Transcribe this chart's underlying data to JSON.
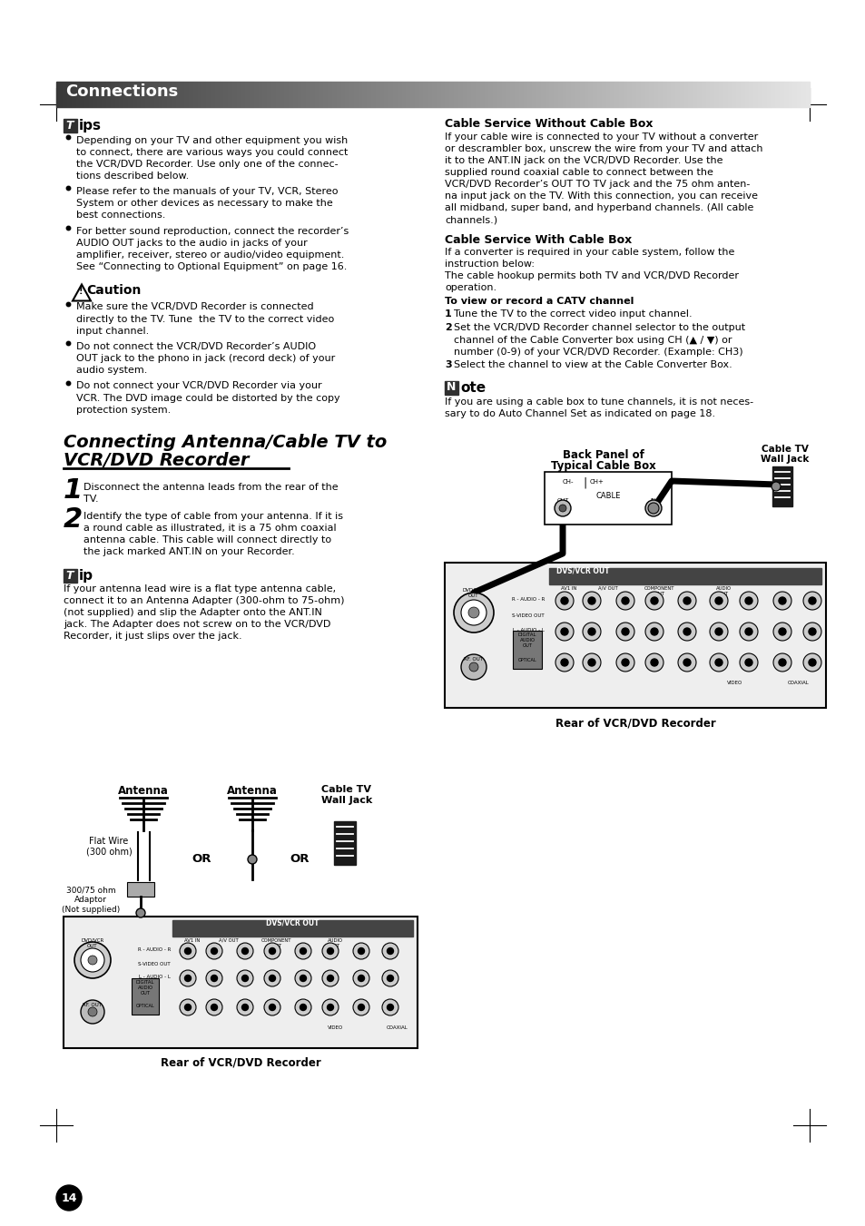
{
  "page_bg": "#ffffff",
  "header_text": "Connections",
  "page_number": "14",
  "tips_bullets": [
    "Depending on your TV and other equipment you wish\nto connect, there are various ways you could connect\nthe VCR/DVD Recorder. Use only one of the connec-\ntions described below.",
    "Please refer to the manuals of your TV, VCR, Stereo\nSystem or other devices as necessary to make the\nbest connections.",
    "For better sound reproduction, connect the recorder’s\nAUDIO OUT jacks to the audio in jacks of your\namplifier, receiver, stereo or audio/video equipment.\nSee “Connecting to Optional Equipment” on page 16."
  ],
  "caution_title": "Caution",
  "caution_bullets": [
    "Make sure the VCR/DVD Recorder is connected\ndirectly to the TV. Tune  the TV to the correct video\ninput channel.",
    "Do not connect the VCR/DVD Recorder’s AUDIO\nOUT jack to the phono in jack (record deck) of your\naudio system.",
    "Do not connect your VCR/DVD Recorder via your\nVCR. The DVD image could be distorted by the copy\nprotection system."
  ],
  "section_title_line1": "Connecting Antenna/Cable TV to",
  "section_title_line2": "VCR/DVD Recorder",
  "step1_text": "Disconnect the antenna leads from the rear of the\nTV.",
  "step2_text": "Identify the type of cable from your antenna. If it is\na round cable as illustrated, it is a 75 ohm coaxial\nantenna cable. This cable will connect directly to\nthe jack marked ANT.IN on your Recorder.",
  "tip_body": "If your antenna lead wire is a flat type antenna cable,\nconnect it to an Antenna Adapter (300-ohm to 75-ohm)\n(not supplied) and slip the Adapter onto the ANT.IN\njack. The Adapter does not screw on to the VCR/DVD\nRecorder, it just slips over the jack.",
  "right_section1_title": "Cable Service Without Cable Box",
  "right_section1_body": "If your cable wire is connected to your TV without a converter\nor descrambler box, unscrew the wire from your TV and attach\nit to the ANT.IN jack on the VCR/DVD Recorder. Use the\nsupplied round coaxial cable to connect between the\nVCR/DVD Recorder’s OUT TO TV jack and the 75 ohm anten-\nna input jack on the TV. With this connection, you can receive\nall midband, super band, and hyperband channels. (All cable\nchannels.)",
  "right_section2_title": "Cable Service With Cable Box",
  "right_section2_body": "If a converter is required in your cable system, follow the\ninstruction below:\nThe cable hookup permits both TV and VCR/DVD Recorder\noperation.",
  "catv_title": "To view or record a CATV channel",
  "catv_steps": [
    "Tune the TV to the correct video input channel.",
    "Set the VCR/DVD Recorder channel selector to the output\nchannel of the Cable Converter box using CH (▲ / ▼) or\nnumber (0-9) of your VCR/DVD Recorder. (Example: CH3)",
    "Select the channel to view at the Cable Converter Box."
  ],
  "note_body": "If you are using a cable box to tune channels, it is not neces-\nsary to do Auto Channel Set as indicated on page 18.",
  "rear_vcr_label": "Rear of VCR/DVD Recorder"
}
